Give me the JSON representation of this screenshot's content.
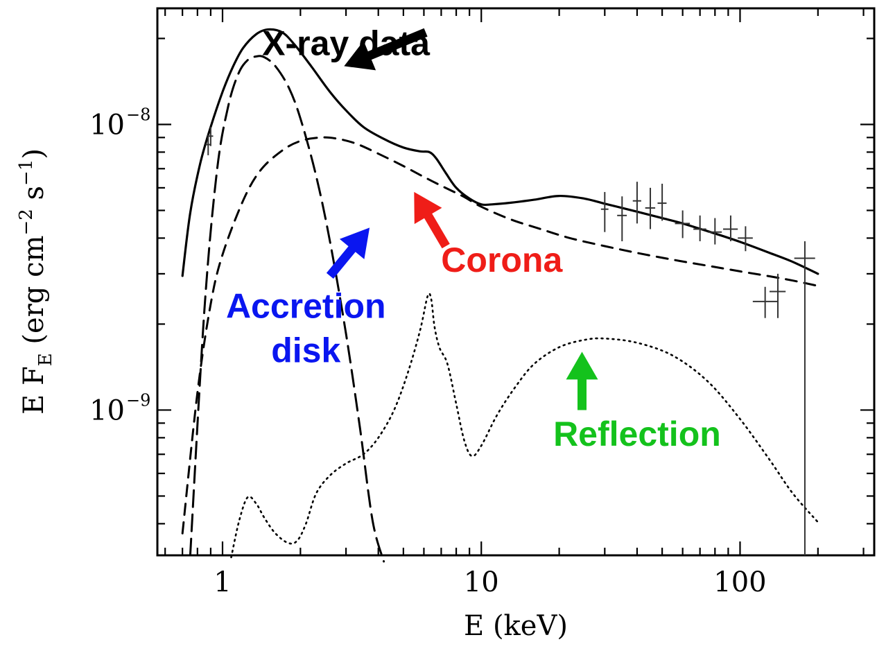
{
  "chart_data": {
    "type": "line",
    "xscale": "log",
    "yscale": "log",
    "xlim": [
      0.56,
      330
    ],
    "ylim": [
      3.1e-10,
      2.55e-08
    ],
    "xticks": [
      {
        "value": 1,
        "label": "1"
      },
      {
        "value": 10,
        "label": "10"
      },
      {
        "value": 100,
        "label": "100"
      }
    ],
    "yticks": [
      {
        "value": 1e-09,
        "base": "10",
        "exp": "−9"
      },
      {
        "value": 1e-08,
        "base": "10",
        "exp": "−8"
      }
    ],
    "xlabel": "E (keV)",
    "ylabel": {
      "main": "E F",
      "sub": "E",
      "unit": " (erg cm",
      "exp1": "−2",
      "mid": " s",
      "exp2": "−1",
      "close": ")"
    },
    "series": [
      {
        "key": "total",
        "style": "solid",
        "x": [
          0.7,
          0.75,
          0.82,
          0.9,
          1.0,
          1.1,
          1.2,
          1.35,
          1.5,
          1.7,
          1.9,
          2.2,
          2.6,
          3.0,
          3.5,
          4.2,
          5.0,
          5.8,
          6.3,
          6.7,
          7.3,
          8.0,
          9.0,
          10,
          11,
          13,
          16,
          20,
          25,
          30,
          40,
          50,
          60,
          80,
          100,
          130,
          160,
          200
        ],
        "y": [
          2.95e-09,
          4.9e-09,
          7.3e-09,
          9.8e-09,
          1.3e-08,
          1.6e-08,
          1.85e-08,
          2.07e-08,
          2.15e-08,
          2.1e-08,
          1.9e-08,
          1.6e-08,
          1.3e-08,
          1.12e-08,
          9.8e-09,
          8.9e-09,
          8.3e-09,
          8.05e-09,
          8e-09,
          7.6e-09,
          6.75e-09,
          6e-09,
          5.5e-09,
          5.25e-09,
          5.25e-09,
          5.32e-09,
          5.45e-09,
          5.62e-09,
          5.5e-09,
          5.28e-09,
          4.95e-09,
          4.7e-09,
          4.5e-09,
          4.15e-09,
          3.88e-09,
          3.55e-09,
          3.3e-09,
          3e-09
        ]
      },
      {
        "key": "accretion-disk",
        "style": "long-dash",
        "x": [
          0.75,
          0.85,
          0.95,
          1.05,
          1.15,
          1.25,
          1.35,
          1.45,
          1.6,
          1.8,
          2.0,
          2.3,
          2.6,
          3.0,
          3.4,
          3.8,
          4.2
        ],
        "y": [
          3.1e-10,
          2.2e-09,
          6.8e-09,
          1.15e-08,
          1.5e-08,
          1.68e-08,
          1.73e-08,
          1.72e-08,
          1.6e-08,
          1.35e-08,
          1.05e-08,
          6.6e-09,
          3.9e-09,
          1.85e-09,
          8.6e-10,
          4.1e-10,
          2.95e-10
        ]
      },
      {
        "key": "corona",
        "style": "short-dash",
        "x": [
          0.7,
          0.8,
          0.9,
          1.0,
          1.2,
          1.4,
          1.7,
          2.0,
          2.4,
          2.8,
          3.3,
          4.0,
          5.0,
          6.0,
          7.0,
          8.5,
          10,
          13,
          17,
          22,
          30,
          40,
          55,
          75,
          100,
          130,
          160,
          200
        ],
        "y": [
          3.7e-10,
          1.15e-09,
          2.35e-09,
          3.5e-09,
          5.4e-09,
          6.9e-09,
          8.1e-09,
          8.75e-09,
          9e-09,
          8.9e-09,
          8.55e-09,
          7.9e-09,
          7.15e-09,
          6.55e-09,
          6.1e-09,
          5.6e-09,
          5.15e-09,
          4.65e-09,
          4.3e-09,
          4e-09,
          3.75e-09,
          3.55e-09,
          3.36e-09,
          3.2e-09,
          3.06e-09,
          2.94e-09,
          2.84e-09,
          2.72e-09
        ]
      },
      {
        "key": "reflection",
        "style": "dotted",
        "x": [
          1.08,
          1.16,
          1.25,
          1.35,
          1.45,
          1.6,
          1.8,
          1.95,
          2.1,
          2.3,
          2.6,
          3.0,
          3.5,
          4.0,
          4.6,
          5.2,
          5.8,
          6.2,
          6.4,
          6.6,
          6.9,
          7.4,
          8.0,
          8.6,
          9.2,
          10,
          11.5,
          13.5,
          16,
          20,
          25,
          30,
          40,
          55,
          75,
          100,
          130,
          160,
          200
        ],
        "y": [
          3.05e-10,
          4.1e-10,
          4.95e-10,
          4.7e-10,
          4.2e-10,
          3.7e-10,
          3.42e-10,
          3.5e-10,
          4e-10,
          5.1e-10,
          5.9e-10,
          6.5e-10,
          7e-10,
          8e-10,
          1e-09,
          1.35e-09,
          1.9e-09,
          2.5e-09,
          2.45e-09,
          1.95e-09,
          1.65e-09,
          1.45e-09,
          1.05e-09,
          7.8e-10,
          6.9e-10,
          7.5e-10,
          9.6e-10,
          1.2e-09,
          1.45e-09,
          1.66e-09,
          1.76e-09,
          1.78e-09,
          1.72e-09,
          1.55e-09,
          1.26e-09,
          9.3e-10,
          6.7e-10,
          5.1e-10,
          4.05e-10
        ]
      }
    ],
    "errorbars": [
      {
        "x": 0.88,
        "y": 8.5e-09,
        "ylo": 7.8e-09,
        "yhi": 9.2e-09,
        "xlo": 0.86,
        "xhi": 0.9
      },
      {
        "x": 0.9,
        "y": 9.1e-09,
        "ylo": 8.4e-09,
        "yhi": 9.8e-09,
        "xlo": 0.88,
        "xhi": 0.92
      },
      {
        "x": 30,
        "y": 5.05e-09,
        "ylo": 4.2e-09,
        "yhi": 5.8e-09,
        "xlo": 29,
        "xhi": 31
      },
      {
        "x": 35,
        "y": 4.8e-09,
        "ylo": 3.9e-09,
        "yhi": 5.6e-09,
        "xlo": 33.5,
        "xhi": 36.5
      },
      {
        "x": 40,
        "y": 5.4e-09,
        "ylo": 4.5e-09,
        "yhi": 6.3e-09,
        "xlo": 38.5,
        "xhi": 41.5
      },
      {
        "x": 45,
        "y": 5.1e-09,
        "ylo": 4.3e-09,
        "yhi": 6e-09,
        "xlo": 43,
        "xhi": 47
      },
      {
        "x": 50,
        "y": 5.3e-09,
        "ylo": 4.6e-09,
        "yhi": 6.2e-09,
        "xlo": 48,
        "xhi": 52
      },
      {
        "x": 60,
        "y": 4.5e-09,
        "ylo": 4e-09,
        "yhi": 5e-09,
        "xlo": 56,
        "xhi": 64
      },
      {
        "x": 70,
        "y": 4.3e-09,
        "ylo": 3.9e-09,
        "yhi": 4.8e-09,
        "xlo": 66,
        "xhi": 74
      },
      {
        "x": 80,
        "y": 4.2e-09,
        "ylo": 3.8e-09,
        "yhi": 4.7e-09,
        "xlo": 75,
        "xhi": 85
      },
      {
        "x": 92,
        "y": 4.3e-09,
        "ylo": 3.9e-09,
        "yhi": 4.8e-09,
        "xlo": 86,
        "xhi": 98
      },
      {
        "x": 105,
        "y": 4e-09,
        "ylo": 3.6e-09,
        "yhi": 4.4e-09,
        "xlo": 98,
        "xhi": 112
      },
      {
        "x": 125,
        "y": 2.4e-09,
        "ylo": 2.1e-09,
        "yhi": 2.7e-09,
        "xlo": 112,
        "xhi": 140
      },
      {
        "x": 140,
        "y": 2.6e-09,
        "ylo": 2.1e-09,
        "yhi": 3e-09,
        "xlo": 130,
        "xhi": 150
      },
      {
        "x": 178,
        "y": 3.4e-09,
        "ylo": 3.1e-10,
        "yhi": 3.9e-09,
        "xlo": 162,
        "xhi": 195
      }
    ],
    "annotations": [
      {
        "key": "xray",
        "text": "X-ray data",
        "color": "#000000",
        "at": [
          3.0,
          1.75e-08
        ],
        "tip": [
          2.95,
          1.6e-08
        ],
        "tail": [
          6.1,
          2.1e-08
        ]
      },
      {
        "key": "disk",
        "text": [
          "Accretion",
          "disk"
        ],
        "color": "#0a16f0",
        "at": [
          2.1,
          2.1e-09
        ],
        "tip": [
          3.7,
          4.35e-09
        ],
        "tail": [
          2.6,
          2.95e-09
        ]
      },
      {
        "key": "corona",
        "text": "Corona",
        "color": "#ef1d18",
        "at": [
          12,
          3.05e-09
        ],
        "tip": [
          5.5,
          5.8e-09
        ],
        "tail": [
          7.3,
          3.75e-09
        ]
      },
      {
        "key": "reflection",
        "text": "Reflection",
        "color": "#14c21c",
        "at": [
          40,
          7.5e-10
        ],
        "tip": [
          24.5,
          1.6e-09
        ],
        "tail": [
          24.5,
          1e-09
        ]
      }
    ]
  }
}
